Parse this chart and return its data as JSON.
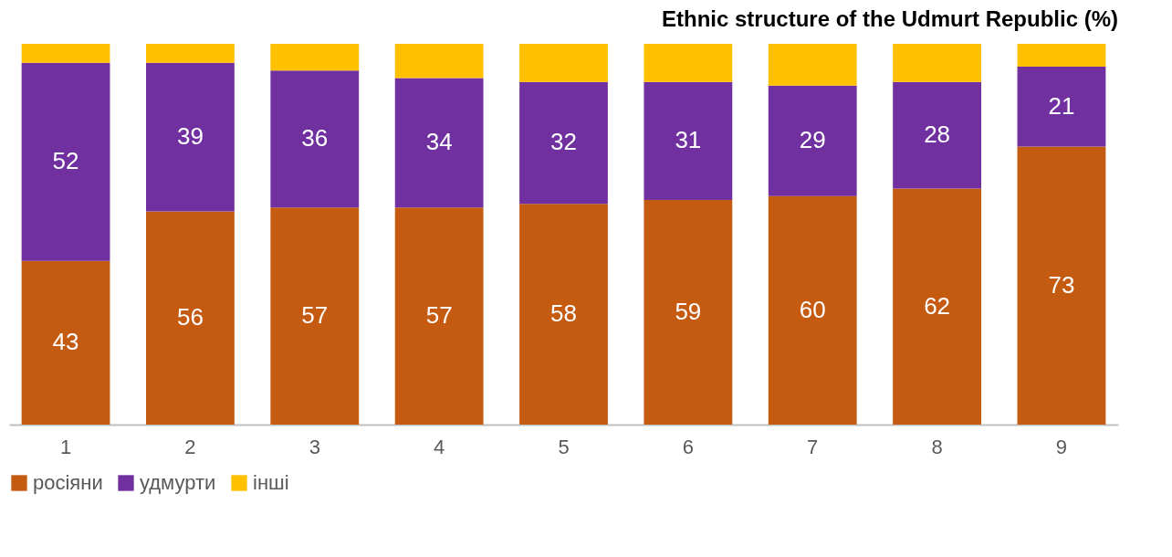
{
  "chart_data": {
    "type": "bar",
    "title": "Ethnic structure of the Udmurt Republic (%)",
    "stacked": true,
    "tick_labels": "x",
    "ylim": [
      0,
      100
    ],
    "grid": false,
    "legend": "bottom",
    "categories": [
      "1",
      "2",
      "3",
      "4",
      "5",
      "6",
      "7",
      "8",
      "9"
    ],
    "series": [
      {
        "name": "росіяни",
        "color": "#c55a11",
        "values": [
          43,
          56,
          57,
          57,
          58,
          59,
          60,
          62,
          73
        ],
        "value_labels": [
          "43",
          "56",
          "57",
          "57",
          "58",
          "59",
          "60",
          "62",
          "73"
        ]
      },
      {
        "name": "удмурти",
        "color": "#7030a0",
        "values": [
          52,
          39,
          36,
          34,
          32,
          31,
          29,
          28,
          21
        ],
        "value_labels": [
          "52",
          "39",
          "36",
          "34",
          "32",
          "31",
          "29",
          "28",
          "21"
        ]
      },
      {
        "name": "інші",
        "color": "#ffc000",
        "values": [
          5,
          5,
          7,
          9,
          10,
          10,
          11,
          10,
          6
        ],
        "value_labels": [
          null,
          null,
          null,
          null,
          null,
          null,
          null,
          null,
          null
        ]
      }
    ]
  }
}
